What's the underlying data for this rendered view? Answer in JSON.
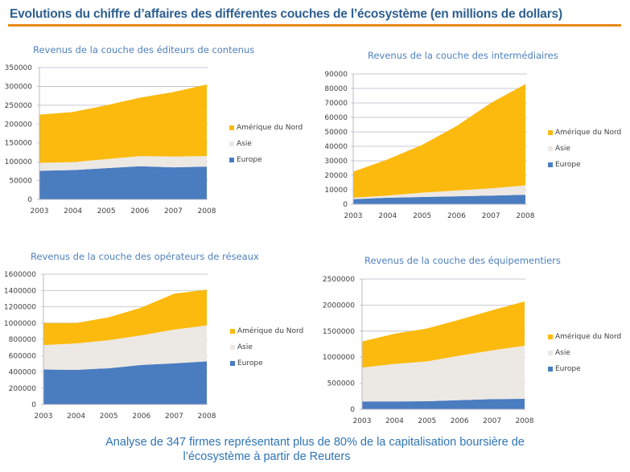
{
  "header": {
    "title": "Evolutions du chiffre d’affaires des différentes couches de l’écosystème (en millions de dollars)"
  },
  "footer": {
    "line1": "Analyse de 347 firmes représentant plus de 80% de la capitalisation boursière de",
    "line2": "l’écosystème à partir de Reuters"
  },
  "colors": {
    "europe": "#4a7cc0",
    "asie": "#ece8e4",
    "amerique": "#fbba0d",
    "accent_rule": "#e8891a",
    "title": "#2d5f8f",
    "chart_title": "#4f81bd"
  },
  "chart_data": [
    {
      "type": "area",
      "stacked": true,
      "title": "Revenus de la couche des éditeurs de contenus",
      "xlabel": "",
      "ylabel": "",
      "x": [
        "2003",
        "2004",
        "2005",
        "2006",
        "2007",
        "2008"
      ],
      "ylim": [
        0,
        350000
      ],
      "yticks": [
        "0",
        "50000",
        "100000",
        "150000",
        "200000",
        "250000",
        "300000",
        "350000"
      ],
      "grid": true,
      "legend": "right",
      "series": [
        {
          "name": "Europe",
          "values": [
            76000,
            78000,
            83000,
            88000,
            85000,
            87000
          ]
        },
        {
          "name": "Asie",
          "values": [
            21000,
            21000,
            24000,
            27000,
            29000,
            28000
          ]
        },
        {
          "name": "Amérique du Nord",
          "values": [
            128000,
            133000,
            143000,
            155000,
            171000,
            190000
          ]
        }
      ]
    },
    {
      "type": "area",
      "stacked": true,
      "title": "Revenus de la couche des intermédiaires",
      "xlabel": "",
      "ylabel": "",
      "x": [
        "2003",
        "2004",
        "2005",
        "2006",
        "2007",
        "2008"
      ],
      "ylim": [
        0,
        90000
      ],
      "yticks": [
        "0",
        "10000",
        "20000",
        "30000",
        "40000",
        "50000",
        "60000",
        "70000",
        "80000",
        "90000"
      ],
      "grid": true,
      "legend": "right",
      "series": [
        {
          "name": "Europe",
          "values": [
            3500,
            4500,
            5000,
            5500,
            6000,
            6500
          ]
        },
        {
          "name": "Asie",
          "values": [
            1000,
            1500,
            3000,
            4000,
            5000,
            6500
          ]
        },
        {
          "name": "Amérique du Nord",
          "values": [
            18000,
            25000,
            33000,
            44500,
            59000,
            70000
          ]
        }
      ]
    },
    {
      "type": "area",
      "stacked": true,
      "title": "Revenus de la couche des opérateurs de réseaux",
      "xlabel": "",
      "ylabel": "",
      "x": [
        "2003",
        "2004",
        "2005",
        "2006",
        "2007",
        "2008"
      ],
      "ylim": [
        0,
        1600000
      ],
      "yticks": [
        "0",
        "200000",
        "400000",
        "600000",
        "800000",
        "1000000",
        "1200000",
        "1400000",
        "1600000"
      ],
      "grid": true,
      "legend": "right",
      "series": [
        {
          "name": "Europe",
          "values": [
            430000,
            425000,
            445000,
            485000,
            505000,
            530000
          ]
        },
        {
          "name": "Asie",
          "values": [
            300000,
            325000,
            345000,
            365000,
            415000,
            440000
          ]
        },
        {
          "name": "Amérique du Nord",
          "values": [
            270000,
            250000,
            280000,
            340000,
            440000,
            440000
          ]
        }
      ]
    },
    {
      "type": "area",
      "stacked": true,
      "title": "Revenus de la couche des équipementiers",
      "xlabel": "",
      "ylabel": "",
      "x": [
        "2003",
        "2004",
        "2005",
        "2006",
        "2007",
        "2008"
      ],
      "ylim": [
        0,
        2500000
      ],
      "yticks": [
        "0",
        "500000",
        "1000000",
        "1500000",
        "2000000",
        "2500000"
      ],
      "grid": true,
      "legend": "right",
      "series": [
        {
          "name": "Europe",
          "values": [
            150000,
            150000,
            155000,
            175000,
            195000,
            200000
          ]
        },
        {
          "name": "Asie",
          "values": [
            650000,
            720000,
            765000,
            855000,
            935000,
            1020000
          ]
        },
        {
          "name": "Amérique du Nord",
          "values": [
            500000,
            580000,
            630000,
            690000,
            770000,
            850000
          ]
        }
      ]
    }
  ]
}
